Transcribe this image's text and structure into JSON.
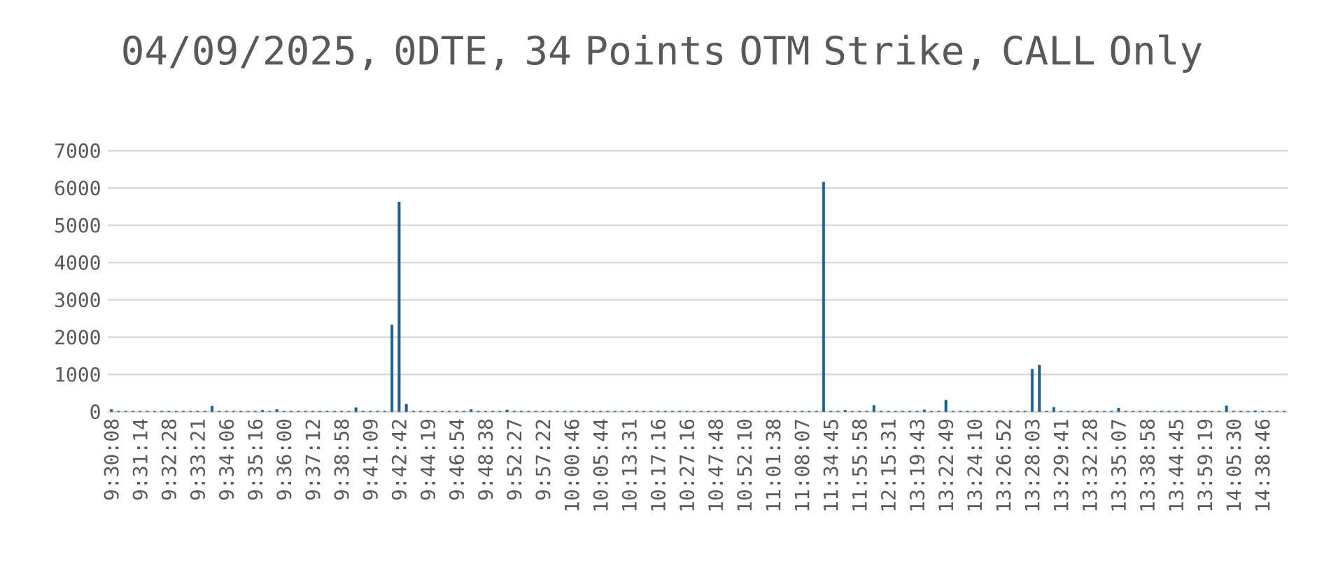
{
  "chart_data": {
    "type": "bar",
    "title": "04/09/2025, 0DTE, 34 Points OTM Strike, CALL Only",
    "categories": [
      "9:30:08",
      null,
      null,
      null,
      "9:31:14",
      null,
      null,
      null,
      "9:32:28",
      null,
      null,
      null,
      "9:33:21",
      null,
      null,
      null,
      "9:34:06",
      null,
      null,
      null,
      "9:35:16",
      null,
      null,
      null,
      "9:36:00",
      null,
      null,
      null,
      "9:37:12",
      null,
      null,
      null,
      "9:38:58",
      null,
      null,
      null,
      "9:41:09",
      null,
      null,
      null,
      "9:42:42",
      null,
      null,
      null,
      "9:44:19",
      null,
      null,
      null,
      "9:46:54",
      null,
      null,
      null,
      "9:48:38",
      null,
      null,
      null,
      "9:52:27",
      null,
      null,
      null,
      "9:57:22",
      null,
      null,
      null,
      "10:00:46",
      null,
      null,
      null,
      "10:05:44",
      null,
      null,
      null,
      "10:13:31",
      null,
      null,
      null,
      "10:17:16",
      null,
      null,
      null,
      "10:27:16",
      null,
      null,
      null,
      "10:47:48",
      null,
      null,
      null,
      "10:52:10",
      null,
      null,
      null,
      "11:01:38",
      null,
      null,
      null,
      "11:08:07",
      null,
      null,
      null,
      "11:34:45",
      null,
      null,
      null,
      "11:55:58",
      null,
      null,
      null,
      "12:15:31",
      null,
      null,
      null,
      "13:19:43",
      null,
      null,
      null,
      "13:22:49",
      null,
      null,
      null,
      "13:24:10",
      null,
      null,
      null,
      "13:26:52",
      null,
      null,
      null,
      "13:28:03",
      null,
      null,
      null,
      "13:29:41",
      null,
      null,
      null,
      "13:32:28",
      null,
      null,
      null,
      "13:35:07",
      null,
      null,
      null,
      "13:38:58",
      null,
      null,
      null,
      "13:44:45",
      null,
      null,
      null,
      "13:59:19",
      null,
      null,
      null,
      "14:05:30",
      null,
      null,
      null,
      "14:38:46",
      null,
      null,
      null
    ],
    "values": [
      60,
      15,
      15,
      15,
      15,
      15,
      15,
      15,
      15,
      15,
      15,
      15,
      15,
      15,
      150,
      15,
      15,
      15,
      15,
      15,
      15,
      40,
      15,
      60,
      15,
      15,
      15,
      15,
      15,
      15,
      15,
      15,
      15,
      15,
      110,
      15,
      15,
      15,
      15,
      2330,
      5620,
      200,
      15,
      15,
      15,
      15,
      15,
      15,
      15,
      15,
      60,
      15,
      15,
      15,
      15,
      50,
      15,
      15,
      15,
      15,
      15,
      15,
      15,
      15,
      15,
      15,
      15,
      15,
      15,
      15,
      15,
      15,
      15,
      15,
      15,
      15,
      15,
      15,
      15,
      15,
      15,
      15,
      15,
      15,
      15,
      15,
      15,
      15,
      15,
      15,
      15,
      15,
      15,
      15,
      15,
      15,
      15,
      15,
      15,
      6160,
      15,
      15,
      40,
      15,
      15,
      15,
      170,
      15,
      15,
      15,
      15,
      15,
      15,
      50,
      15,
      15,
      310,
      15,
      15,
      15,
      15,
      15,
      15,
      15,
      15,
      15,
      15,
      15,
      1140,
      1250,
      15,
      120,
      15,
      15,
      15,
      15,
      15,
      15,
      15,
      15,
      100,
      15,
      15,
      15,
      15,
      15,
      15,
      15,
      15,
      15,
      15,
      15,
      15,
      15,
      15,
      160,
      15,
      15,
      15,
      30,
      15,
      15,
      15,
      15
    ],
    "color": "#1f5f8b",
    "ylim": [
      0,
      7000
    ],
    "yticks": [
      0,
      1000,
      2000,
      3000,
      4000,
      5000,
      6000,
      7000
    ],
    "grid": "y"
  }
}
